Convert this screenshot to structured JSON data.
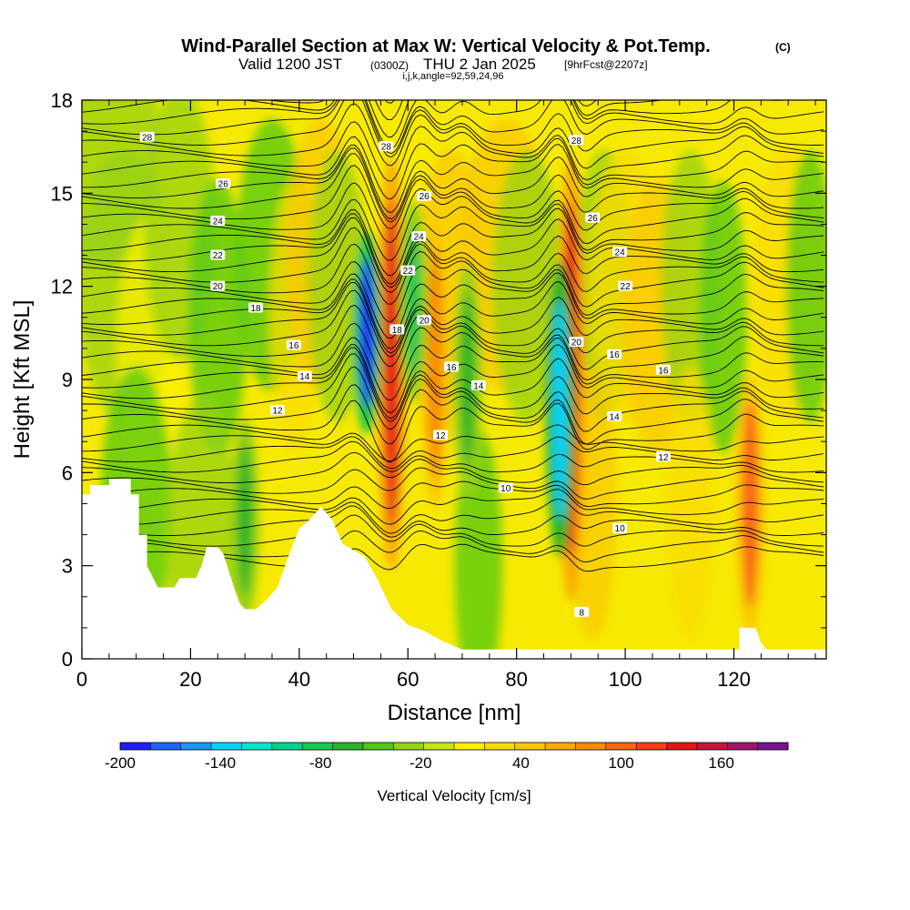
{
  "chart_data": {
    "type": "heatmap",
    "title": "Wind-Parallel Section at Max W: Vertical Velocity & Pot.Temp.",
    "title_mark": "(C)",
    "subtitle_main": "Valid 1200 JST",
    "subtitle_utc": "(0300Z)",
    "subtitle_date": "THU 2 Jan 2025",
    "subtitle_fcst": "[9hrFcst@2207z]",
    "subtitle_indices": "i,j,k,angle=92,59,24,96",
    "xlabel": "Distance [nm]",
    "ylabel": "Height [Kft MSL]",
    "xlim": [
      0,
      137
    ],
    "ylim": [
      0,
      18
    ],
    "x_ticks": [
      "0",
      "20",
      "40",
      "60",
      "80",
      "100",
      "120"
    ],
    "y_ticks": [
      "0",
      "3",
      "6",
      "9",
      "12",
      "15",
      "18"
    ],
    "colorbar": {
      "label": "Vertical Velocity [cm/s]",
      "tick_labels": [
        "-200",
        "-140",
        "-80",
        "-20",
        "40",
        "100",
        "160"
      ],
      "min": -200,
      "max": 200,
      "colors": [
        "#1e1efa",
        "#1e64fa",
        "#1e96fa",
        "#00d2fa",
        "#00e6c8",
        "#00d28c",
        "#14c850",
        "#28b428",
        "#50c814",
        "#96d214",
        "#c8e614",
        "#faf000",
        "#fadc00",
        "#fac800",
        "#faaa00",
        "#fa8c00",
        "#fa6414",
        "#fa3c14",
        "#e61414",
        "#c8143c",
        "#a0146e",
        "#78148c"
      ]
    },
    "theta_contour_labels": [
      "28",
      "26",
      "24",
      "22",
      "20",
      "18",
      "16",
      "14",
      "12",
      "10",
      "8"
    ],
    "updraft_cores": [
      {
        "x": 57,
        "w_max": 140
      },
      {
        "x": 65,
        "w_max": 80
      },
      {
        "x": 90,
        "w_max": 140
      },
      {
        "x": 123,
        "w_max": 100
      }
    ],
    "downdraft_cores": [
      {
        "x": 52.5,
        "w_min": -200
      },
      {
        "x": 61,
        "w_min": -80
      },
      {
        "x": 88,
        "w_min": -140
      },
      {
        "x": 71,
        "w_min": -60
      },
      {
        "x": 30,
        "w_min": -60
      }
    ],
    "grid": false
  }
}
